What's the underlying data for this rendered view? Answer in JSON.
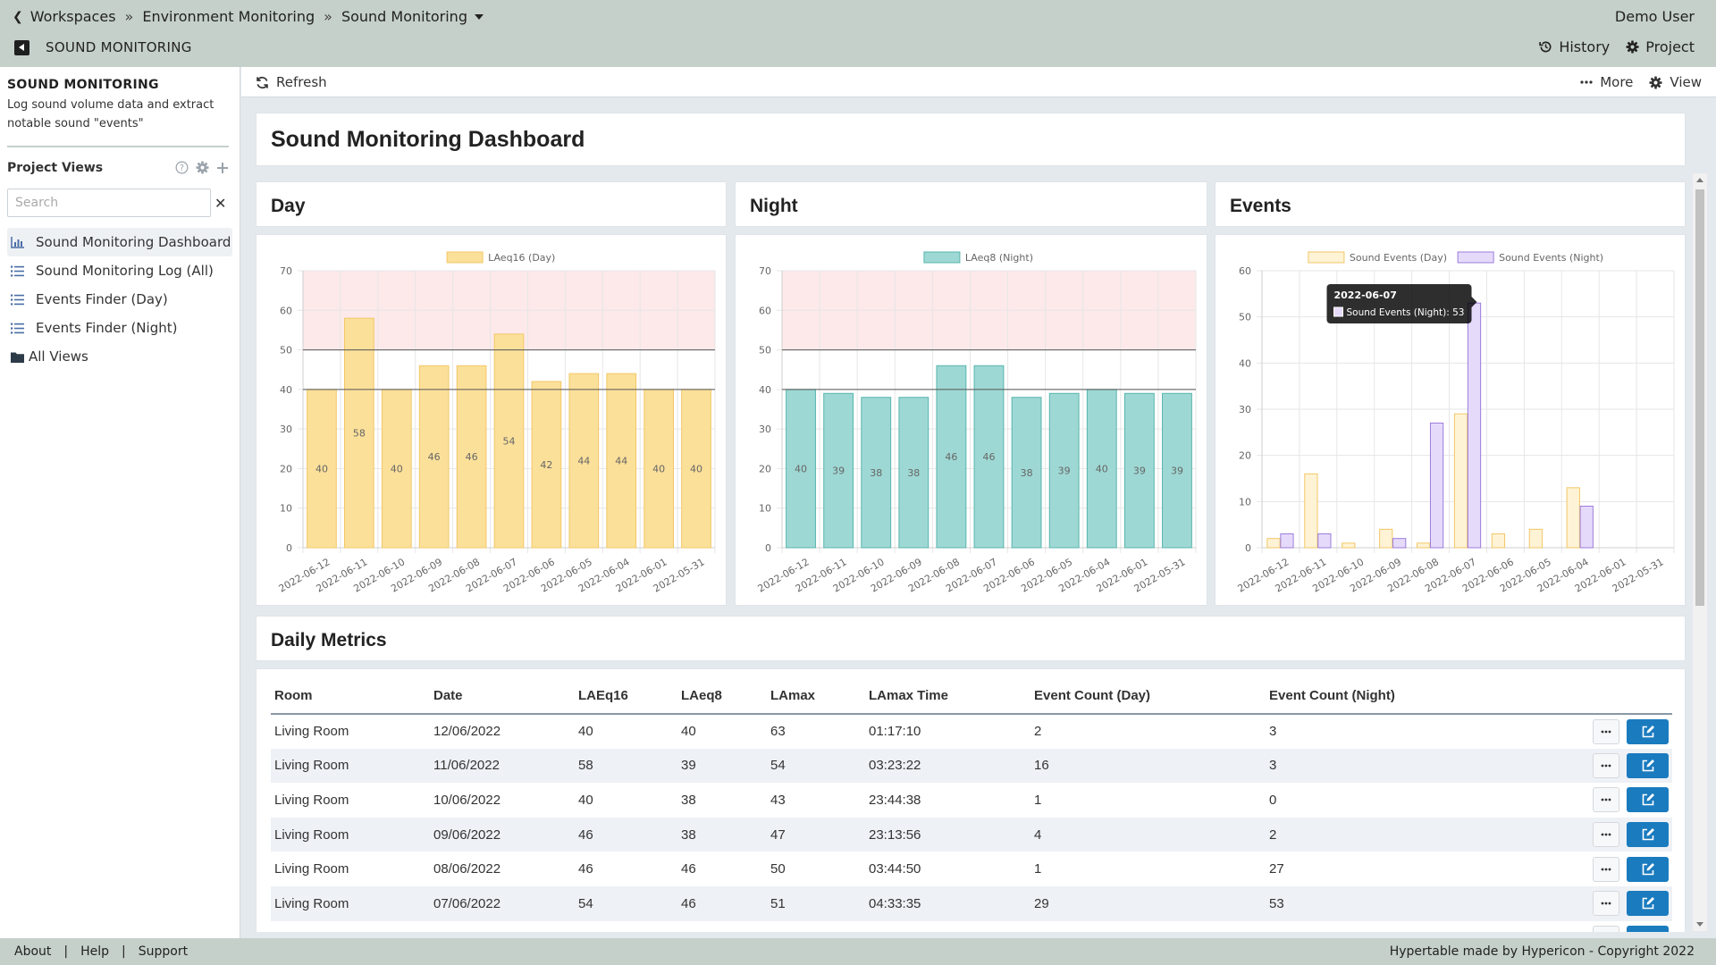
{
  "header": {
    "breadcrumbs": [
      "Workspaces",
      "Environment Monitoring",
      "Sound Monitoring"
    ],
    "user": "Demo User",
    "app_title": "SOUND MONITORING",
    "history_label": "History",
    "project_label": "Project"
  },
  "sidebar": {
    "title": "SOUND MONITORING",
    "description": "Log sound volume data and extract notable sound \"events\"",
    "project_views_label": "Project Views",
    "search_placeholder": "Search",
    "items": [
      {
        "label": "Sound Monitoring Dashboard",
        "icon": "chart-icon",
        "active": true
      },
      {
        "label": "Sound Monitoring Log (All)",
        "icon": "list-icon"
      },
      {
        "label": "Events Finder (Day)",
        "icon": "list-icon"
      },
      {
        "label": "Events Finder (Night)",
        "icon": "list-icon"
      },
      {
        "label": "All Views",
        "icon": "folder-icon"
      }
    ]
  },
  "toolbar": {
    "refresh": "Refresh",
    "more": "More",
    "view": "View"
  },
  "main": {
    "title": "Sound Monitoring Dashboard",
    "day_title": "Day",
    "night_title": "Night",
    "events_title": "Events",
    "metrics_title": "Daily Metrics"
  },
  "colors": {
    "day_fill": "#fbe09a",
    "day_stroke": "#f2c766",
    "night_fill": "#9ed8d4",
    "night_stroke": "#58b5ad",
    "events_day_fill": "#fff3d6",
    "events_night_fill": "#e6dafb",
    "events_night_stroke": "#9b7ddb",
    "band": "#fde9ea",
    "edit_button": "#1a7bbf"
  },
  "chart_data": [
    {
      "type": "bar",
      "categories": [
        "2022-06-12",
        "2022-06-11",
        "2022-06-10",
        "2022-06-09",
        "2022-06-08",
        "2022-06-07",
        "2022-06-06",
        "2022-06-05",
        "2022-06-04",
        "2022-06-01",
        "2022-05-31"
      ],
      "series": [
        {
          "name": "LAeq16 (Day)",
          "values": [
            40,
            58,
            40,
            46,
            46,
            54,
            42,
            44,
            44,
            40,
            40
          ]
        }
      ],
      "ylim": [
        0,
        70
      ],
      "yticks": [
        0,
        10,
        20,
        30,
        40,
        50,
        60,
        70
      ],
      "thresholds": [
        40,
        50
      ],
      "band": [
        50,
        70
      ],
      "legend": "top-center",
      "grid": true
    },
    {
      "type": "bar",
      "categories": [
        "2022-06-12",
        "2022-06-11",
        "2022-06-10",
        "2022-06-09",
        "2022-06-08",
        "2022-06-07",
        "2022-06-06",
        "2022-06-05",
        "2022-06-04",
        "2022-06-01",
        "2022-05-31"
      ],
      "series": [
        {
          "name": "LAeq8 (Night)",
          "values": [
            40,
            39,
            38,
            38,
            46,
            46,
            38,
            39,
            40,
            39,
            39
          ]
        }
      ],
      "ylim": [
        0,
        70
      ],
      "yticks": [
        0,
        10,
        20,
        30,
        40,
        50,
        60,
        70
      ],
      "thresholds": [
        40,
        50
      ],
      "band": [
        50,
        70
      ],
      "legend": "top-center",
      "grid": true
    },
    {
      "type": "bar",
      "categories": [
        "2022-06-12",
        "2022-06-11",
        "2022-06-10",
        "2022-06-09",
        "2022-06-08",
        "2022-06-07",
        "2022-06-06",
        "2022-06-05",
        "2022-06-04",
        "2022-06-01",
        "2022-05-31"
      ],
      "series": [
        {
          "name": "Sound Events (Day)",
          "values": [
            2,
            16,
            1,
            4,
            1,
            29,
            3,
            4,
            13,
            0,
            0
          ]
        },
        {
          "name": "Sound Events (Night)",
          "values": [
            3,
            3,
            0,
            2,
            27,
            53,
            0,
            0,
            9,
            0,
            0
          ]
        }
      ],
      "ylim": [
        0,
        60
      ],
      "yticks": [
        0,
        10,
        20,
        30,
        40,
        50,
        60
      ],
      "legend": "top-center",
      "grid": true,
      "tooltip": {
        "title": "2022-06-07",
        "label": "Sound Events (Night): 53"
      }
    }
  ],
  "table": {
    "columns": [
      "Room",
      "Date",
      "LAEq16",
      "LAeq8",
      "LAmax",
      "LAmax Time",
      "Event Count (Day)",
      "Event Count (Night)"
    ],
    "rows": [
      [
        "Living Room",
        "12/06/2022",
        "40",
        "40",
        "63",
        "01:17:10",
        "2",
        "3"
      ],
      [
        "Living Room",
        "11/06/2022",
        "58",
        "39",
        "54",
        "03:23:22",
        "16",
        "3"
      ],
      [
        "Living Room",
        "10/06/2022",
        "40",
        "38",
        "43",
        "23:44:38",
        "1",
        "0"
      ],
      [
        "Living Room",
        "09/06/2022",
        "46",
        "38",
        "47",
        "23:13:56",
        "4",
        "2"
      ],
      [
        "Living Room",
        "08/06/2022",
        "46",
        "46",
        "50",
        "03:44:50",
        "1",
        "27"
      ],
      [
        "Living Room",
        "07/06/2022",
        "54",
        "46",
        "51",
        "04:33:35",
        "29",
        "53"
      ],
      [
        "",
        "",
        "",
        "",
        "",
        "",
        "",
        ""
      ]
    ]
  },
  "footer": {
    "links": [
      "About",
      "Help",
      "Support"
    ],
    "copyright": "Hypertable made by Hypericon - Copyright 2022"
  }
}
